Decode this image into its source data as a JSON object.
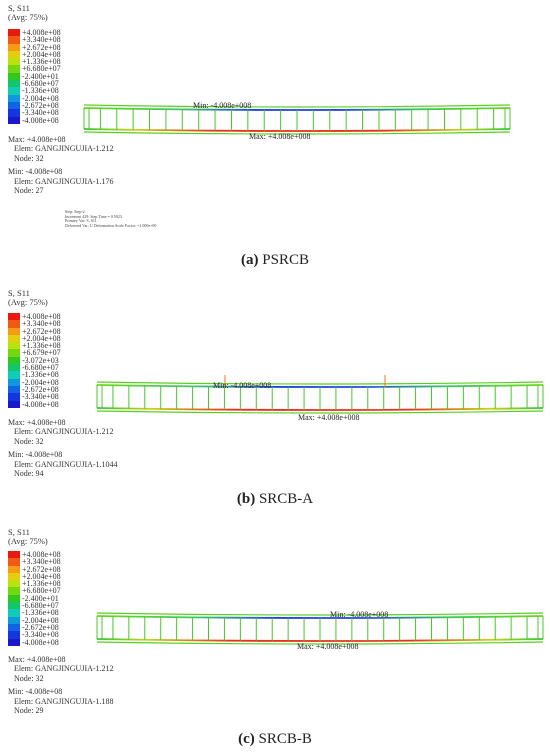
{
  "panels": [
    {
      "id": "a",
      "header": {
        "line1": "S, S11",
        "line2": "(Avg: 75%)"
      },
      "legend": [
        "+4.008e+08",
        "+3.340e+08",
        "+2.672e+08",
        "+2.004e+08",
        "+1.336e+08",
        "+6.680e+07",
        "-2.400e+01",
        "-6.680e+07",
        "-1.336e+08",
        "-2.004e+08",
        "-2.672e+08",
        "-3.340e+08",
        "-4.008e+08"
      ],
      "info": {
        "max_value": "Max: +4.008e+08",
        "max_elem": "Elem: GANGJINGUJIA-1.212",
        "max_node": "Node: 32",
        "min_value": "Min: -4.008e+08",
        "min_elem": "Elem: GANGJINGUJIA-1.176",
        "min_node": "Node: 27"
      },
      "beam_min_label": "Min: -4.008e+008",
      "beam_max_label": "Max: +4.008e+008",
      "step_info": [
        "Step: Step-2",
        "Increment    429: Step Time =    0.5923",
        "Primary Var: S, S11",
        "Deformed Var: U   Deformation Scale Factor: +1.000e+00"
      ],
      "caption": {
        "letter": "(a)",
        "label": " PSRCB"
      }
    },
    {
      "id": "b",
      "header": {
        "line1": "S, S11",
        "line2": "(Avg: 75%)"
      },
      "legend": [
        "+4.008e+08",
        "+3.340e+08",
        "+2.672e+08",
        "+2.004e+08",
        "+1.336e+08",
        "+6.679e+07",
        "-3.072e+03",
        "-6.680e+07",
        "-1.336e+08",
        "-2.004e+08",
        "-2.672e+08",
        "-3.340e+08",
        "-4.008e+08"
      ],
      "info": {
        "max_value": "Max: +4.008e+08",
        "max_elem": "Elem: GANGJINGUJIA-1.212",
        "max_node": "Node: 32",
        "min_value": "Min: -4.008e+08",
        "min_elem": "Elem: GANGJINGUJIA-1.1044",
        "min_node": "Node: 94"
      },
      "beam_min_label": "Min: -4.008e+008",
      "beam_max_label": "Max: +4.008e+008",
      "caption": {
        "letter": "(b)",
        "label": " SRCB-A"
      }
    },
    {
      "id": "c",
      "header": {
        "line1": "S, S11",
        "line2": "(Avg: 75%)"
      },
      "legend": [
        "+4.008e+08",
        "+3.340e+08",
        "+2.672e+08",
        "+2.004e+08",
        "+1.336e+08",
        "+6.680e+07",
        "-2.400e+01",
        "-6.680e+07",
        "-1.336e+08",
        "-2.004e+08",
        "-2.672e+08",
        "-3.340e+08",
        "-4.008e+08"
      ],
      "info": {
        "max_value": "Max: +4.008e+08",
        "max_elem": "Elem: GANGJINGUJIA-1.212",
        "max_node": "Node: 32",
        "min_value": "Min: -4.008e+08",
        "min_elem": "Elem: GANGJINGUJIA-1.188",
        "min_node": "Node: 29"
      },
      "beam_min_label": "Min: -4.008e+008",
      "beam_max_label": "Max: +4.008e+008",
      "caption": {
        "letter": "(c)",
        "label": " SRCB-B"
      }
    }
  ],
  "legend_colors": [
    "#e8190f",
    "#f05a14",
    "#f59c14",
    "#e3cf0e",
    "#b9e20e",
    "#74d80f",
    "#2ec820",
    "#14c66a",
    "#10cbb6",
    "#1098dd",
    "#1262e6",
    "#1436e0",
    "#1a18c8"
  ]
}
